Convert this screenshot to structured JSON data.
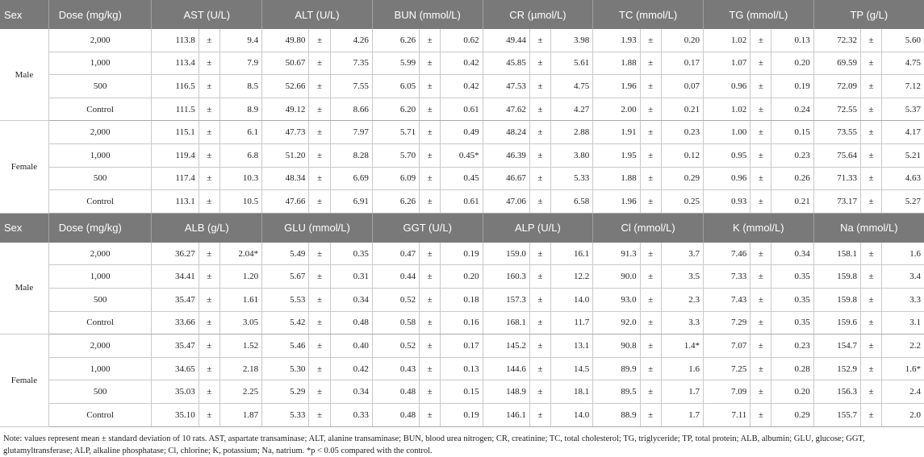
{
  "pm": "±",
  "table1": {
    "header": [
      "Sex",
      "Dose (mg/kg)",
      "AST (U/L)",
      "ALT (U/L)",
      "BUN (mmol/L)",
      "CR (µmol/L)",
      "TC (mmol/L)",
      "TG (mmol/L)",
      "TP (g/L)"
    ],
    "groups": [
      {
        "sex": "Male",
        "rows": [
          {
            "dose": "2,000",
            "cells": [
              [
                "113.8",
                "9.4"
              ],
              [
                "49.80",
                "4.26"
              ],
              [
                "6.26",
                "0.62"
              ],
              [
                "49.44",
                "3.98"
              ],
              [
                "1.93",
                "0.20"
              ],
              [
                "1.02",
                "0.13"
              ],
              [
                "72.32",
                "5.60"
              ]
            ]
          },
          {
            "dose": "1,000",
            "cells": [
              [
                "113.4",
                "7.9"
              ],
              [
                "50.67",
                "7.35"
              ],
              [
                "5.99",
                "0.42"
              ],
              [
                "45.85",
                "5.61"
              ],
              [
                "1.88",
                "0.17"
              ],
              [
                "1.07",
                "0.20"
              ],
              [
                "69.59",
                "4.75"
              ]
            ]
          },
          {
            "dose": "500",
            "cells": [
              [
                "116.5",
                "8.5"
              ],
              [
                "52.66",
                "7.55"
              ],
              [
                "6.05",
                "0.42"
              ],
              [
                "47.53",
                "4.75"
              ],
              [
                "1.96",
                "0.07"
              ],
              [
                "0.96",
                "0.19"
              ],
              [
                "72.09",
                "7.12"
              ]
            ]
          },
          {
            "dose": "Control",
            "cells": [
              [
                "111.5",
                "8.9"
              ],
              [
                "49.12",
                "8.66"
              ],
              [
                "6.20",
                "0.61"
              ],
              [
                "47.62",
                "4.27"
              ],
              [
                "2.00",
                "0.21"
              ],
              [
                "1.02",
                "0.24"
              ],
              [
                "72.55",
                "5.37"
              ]
            ]
          }
        ]
      },
      {
        "sex": "Female",
        "rows": [
          {
            "dose": "2,000",
            "cells": [
              [
                "115.1",
                "6.1"
              ],
              [
                "47.73",
                "7.97"
              ],
              [
                "5.71",
                "0.49"
              ],
              [
                "48.24",
                "2.88"
              ],
              [
                "1.91",
                "0.23"
              ],
              [
                "1.00",
                "0.15"
              ],
              [
                "73.55",
                "4.17"
              ]
            ]
          },
          {
            "dose": "1,000",
            "cells": [
              [
                "119.4",
                "6.8"
              ],
              [
                "51.20",
                "8.28"
              ],
              [
                "5.70",
                "0.45*"
              ],
              [
                "46.39",
                "3.80"
              ],
              [
                "1.95",
                "0.12"
              ],
              [
                "0.95",
                "0.23"
              ],
              [
                "75.64",
                "5.21"
              ]
            ]
          },
          {
            "dose": "500",
            "cells": [
              [
                "117.4",
                "10.3"
              ],
              [
                "48.34",
                "6.69"
              ],
              [
                "6.09",
                "0.45"
              ],
              [
                "46.67",
                "5.33"
              ],
              [
                "1.88",
                "0.29"
              ],
              [
                "0.96",
                "0.26"
              ],
              [
                "71.33",
                "4.63"
              ]
            ]
          },
          {
            "dose": "Control",
            "cells": [
              [
                "113.1",
                "10.5"
              ],
              [
                "47.66",
                "6.91"
              ],
              [
                "6.26",
                "0.61"
              ],
              [
                "47.06",
                "6.58"
              ],
              [
                "1.96",
                "0.25"
              ],
              [
                "0.93",
                "0.21"
              ],
              [
                "73.17",
                "5.27"
              ]
            ]
          }
        ]
      }
    ]
  },
  "table2": {
    "header": [
      "Sex",
      "Dose (mg/kg)",
      "ALB (g/L)",
      "GLU (mmol/L)",
      "GGT (U/L)",
      "ALP (U/L)",
      "Cl (mmol/L)",
      "K (mmol/L)",
      "Na (mmol/L)"
    ],
    "groups": [
      {
        "sex": "Male",
        "rows": [
          {
            "dose": "2,000",
            "cells": [
              [
                "36.27",
                "2.04*"
              ],
              [
                "5.49",
                "0.35"
              ],
              [
                "0.47",
                "0.19"
              ],
              [
                "159.0",
                "16.1"
              ],
              [
                "91.3",
                "3.7"
              ],
              [
                "7.46",
                "0.34"
              ],
              [
                "158.1",
                "1.6"
              ]
            ]
          },
          {
            "dose": "1,000",
            "cells": [
              [
                "34.41",
                "1.20"
              ],
              [
                "5.67",
                "0.31"
              ],
              [
                "0.44",
                "0.20"
              ],
              [
                "160.3",
                "12.2"
              ],
              [
                "90.0",
                "3.5"
              ],
              [
                "7.33",
                "0.35"
              ],
              [
                "159.8",
                "3.4"
              ]
            ]
          },
          {
            "dose": "500",
            "cells": [
              [
                "35.47",
                "1.61"
              ],
              [
                "5.53",
                "0.34"
              ],
              [
                "0.52",
                "0.18"
              ],
              [
                "157.3",
                "14.0"
              ],
              [
                "93.0",
                "2.3"
              ],
              [
                "7.43",
                "0.35"
              ],
              [
                "159.8",
                "3.3"
              ]
            ]
          },
          {
            "dose": "Control",
            "cells": [
              [
                "33.66",
                "3.05"
              ],
              [
                "5.42",
                "0.48"
              ],
              [
                "0.58",
                "0.16"
              ],
              [
                "168.1",
                "11.7"
              ],
              [
                "92.0",
                "3.3"
              ],
              [
                "7.29",
                "0.35"
              ],
              [
                "159.6",
                "3.1"
              ]
            ]
          }
        ]
      },
      {
        "sex": "Female",
        "rows": [
          {
            "dose": "2,000",
            "cells": [
              [
                "35.47",
                "1.52"
              ],
              [
                "5.46",
                "0.40"
              ],
              [
                "0.52",
                "0.17"
              ],
              [
                "145.2",
                "13.1"
              ],
              [
                "90.8",
                "1.4*"
              ],
              [
                "7.07",
                "0.23"
              ],
              [
                "154.7",
                "2.2"
              ]
            ]
          },
          {
            "dose": "1,000",
            "cells": [
              [
                "34.65",
                "2.18"
              ],
              [
                "5.30",
                "0.42"
              ],
              [
                "0.43",
                "0.13"
              ],
              [
                "144.6",
                "14.5"
              ],
              [
                "89.9",
                "1.6"
              ],
              [
                "7.25",
                "0.28"
              ],
              [
                "152.9",
                "1.6*"
              ]
            ]
          },
          {
            "dose": "500",
            "cells": [
              [
                "35.03",
                "2.25"
              ],
              [
                "5.29",
                "0.34"
              ],
              [
                "0.48",
                "0.15"
              ],
              [
                "148.9",
                "18.1"
              ],
              [
                "89.5",
                "1.7"
              ],
              [
                "7.09",
                "0.20"
              ],
              [
                "156.3",
                "2.4"
              ]
            ]
          },
          {
            "dose": "Control",
            "cells": [
              [
                "35.10",
                "1.87"
              ],
              [
                "5.33",
                "0.33"
              ],
              [
                "0.48",
                "0.19"
              ],
              [
                "146.1",
                "14.0"
              ],
              [
                "88.9",
                "1.7"
              ],
              [
                "7.11",
                "0.29"
              ],
              [
                "155.7",
                "2.0"
              ]
            ]
          }
        ]
      }
    ]
  },
  "note": "Note: values represent mean ± standard deviation of 10 rats. AST, aspartate transaminase; ALT, alanine transaminase; BUN, blood urea nitrogen; CR, creatinine; TC, total cholesterol; TG, triglyceride; TP, total protein; ALB, albumin; GLU, glucose; GGT, glutamyltransferase; ALP, alkaline phosphatase; Cl, chlorine; K, potassium; Na, natrium. *p < 0.05 compared with the control."
}
